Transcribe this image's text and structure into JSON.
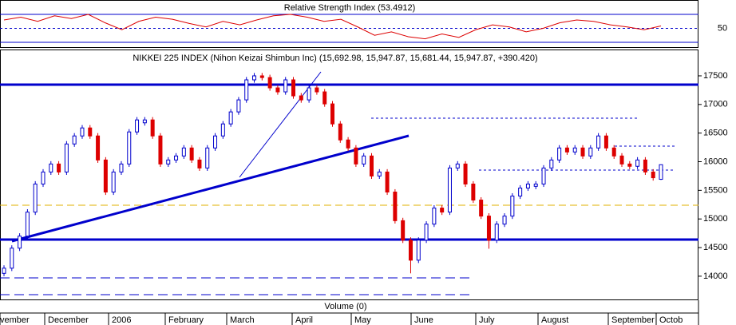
{
  "chart_data": {
    "type": "candlestick",
    "title": "NIKKEI 225 INDEX (Nihon Keizai Shimbun Inc) (15,692.98, 15,947.87, 15,681.44, 15,947.87, +390.420)",
    "up_color": "#0000cc",
    "down_color": "#dd0000",
    "ylim": [
      13580,
      17960
    ],
    "yticks": [
      14000,
      14500,
      15000,
      15500,
      16000,
      16500,
      17000,
      17500
    ],
    "xlabels": [
      "vember",
      "December",
      "2006",
      "February",
      "March",
      "April",
      "May",
      "June",
      "July",
      "August",
      "September",
      "Octob"
    ],
    "volume_label": "Volume (0)",
    "ohlc": [
      [
        14050,
        14190,
        14000,
        14140
      ],
      [
        14140,
        14540,
        14090,
        14490
      ],
      [
        14490,
        14750,
        14440,
        14700
      ],
      [
        14700,
        15170,
        14650,
        15120
      ],
      [
        15120,
        15660,
        15070,
        15610
      ],
      [
        15610,
        15870,
        15560,
        15820
      ],
      [
        15820,
        16010,
        15770,
        15960
      ],
      [
        15960,
        16010,
        15770,
        15820
      ],
      [
        15820,
        16360,
        15770,
        16310
      ],
      [
        16310,
        16500,
        16260,
        16450
      ],
      [
        16450,
        16640,
        16400,
        16590
      ],
      [
        16590,
        16640,
        16400,
        16450
      ],
      [
        16450,
        16500,
        15980,
        16030
      ],
      [
        16030,
        16080,
        15420,
        15470
      ],
      [
        15470,
        15870,
        15420,
        15820
      ],
      [
        15820,
        16010,
        15770,
        15960
      ],
      [
        15960,
        16570,
        15910,
        16520
      ],
      [
        16520,
        16780,
        16470,
        16730
      ],
      [
        16680,
        16780,
        16630,
        16730
      ],
      [
        16730,
        16780,
        16400,
        16450
      ],
      [
        16450,
        16500,
        15910,
        15960
      ],
      [
        15960,
        16080,
        15910,
        16030
      ],
      [
        16030,
        16150,
        15980,
        16100
      ],
      [
        16100,
        16290,
        16050,
        16240
      ],
      [
        16240,
        16290,
        15980,
        16030
      ],
      [
        16030,
        16080,
        15840,
        15890
      ],
      [
        15890,
        16290,
        15840,
        16240
      ],
      [
        16240,
        16500,
        16190,
        16450
      ],
      [
        16450,
        16710,
        16400,
        16660
      ],
      [
        16660,
        16920,
        16610,
        16870
      ],
      [
        16870,
        17130,
        16820,
        17080
      ],
      [
        17080,
        17480,
        17030,
        17430
      ],
      [
        17430,
        17550,
        17380,
        17500
      ],
      [
        17500,
        17550,
        17420,
        17470
      ],
      [
        17470,
        17520,
        17240,
        17290
      ],
      [
        17290,
        17340,
        17170,
        17220
      ],
      [
        17220,
        17480,
        17170,
        17430
      ],
      [
        17430,
        17480,
        17100,
        17150
      ],
      [
        17150,
        17200,
        17030,
        17080
      ],
      [
        17080,
        17340,
        17030,
        17290
      ],
      [
        17290,
        17340,
        17170,
        17220
      ],
      [
        17220,
        17270,
        16960,
        17010
      ],
      [
        17010,
        17060,
        16610,
        16660
      ],
      [
        16660,
        16710,
        16330,
        16380
      ],
      [
        16380,
        16430,
        16190,
        16240
      ],
      [
        16240,
        16290,
        15910,
        15960
      ],
      [
        15960,
        16150,
        15910,
        16100
      ],
      [
        16100,
        16150,
        15700,
        15750
      ],
      [
        15750,
        15870,
        15700,
        15820
      ],
      [
        15820,
        15870,
        15420,
        15470
      ],
      [
        15470,
        15520,
        14920,
        14970
      ],
      [
        14970,
        15020,
        14580,
        14630
      ],
      [
        14630,
        14680,
        14050,
        14280
      ],
      [
        14280,
        14680,
        14230,
        14630
      ],
      [
        14630,
        14960,
        14580,
        14910
      ],
      [
        14910,
        15240,
        14860,
        15190
      ],
      [
        15190,
        15240,
        15070,
        15120
      ],
      [
        15120,
        15940,
        15070,
        15890
      ],
      [
        15890,
        16010,
        15840,
        15960
      ],
      [
        15960,
        16010,
        15560,
        15610
      ],
      [
        15610,
        15660,
        15280,
        15330
      ],
      [
        15330,
        15380,
        15000,
        15050
      ],
      [
        15050,
        15100,
        14480,
        14630
      ],
      [
        14630,
        14960,
        14580,
        14910
      ],
      [
        14910,
        15100,
        14860,
        15050
      ],
      [
        15050,
        15450,
        15000,
        15400
      ],
      [
        15400,
        15590,
        15350,
        15540
      ],
      [
        15540,
        15660,
        15490,
        15610
      ],
      [
        15570,
        15660,
        15520,
        15610
      ],
      [
        15610,
        15940,
        15560,
        15890
      ],
      [
        15890,
        16080,
        15840,
        16030
      ],
      [
        16030,
        16290,
        15980,
        16240
      ],
      [
        16240,
        16290,
        16120,
        16170
      ],
      [
        16170,
        16290,
        16120,
        16240
      ],
      [
        16240,
        16290,
        16050,
        16100
      ],
      [
        16100,
        16290,
        16050,
        16240
      ],
      [
        16240,
        16500,
        16190,
        16450
      ],
      [
        16450,
        16500,
        16190,
        16240
      ],
      [
        16240,
        16290,
        16050,
        16100
      ],
      [
        16100,
        16150,
        15910,
        15960
      ],
      [
        15960,
        16010,
        15870,
        15920
      ],
      [
        15920,
        16080,
        15870,
        16030
      ],
      [
        16030,
        16080,
        15770,
        15820
      ],
      [
        15820,
        15870,
        15670,
        15720
      ],
      [
        15692.98,
        15947.87,
        15681.44,
        15947.87
      ]
    ],
    "rsi": {
      "title": "Relative Strength Index (53.4912)",
      "color": "#dd0000",
      "ylim": [
        22,
        90.6
      ],
      "yticks": [
        50
      ],
      "values": [
        62,
        66,
        60,
        68,
        64,
        70,
        58,
        48,
        60,
        66,
        63,
        57,
        52,
        60,
        55,
        62,
        68,
        70,
        66,
        60,
        63,
        52,
        40,
        45,
        38,
        35,
        42,
        37,
        48,
        55,
        52,
        45,
        50,
        58,
        62,
        60,
        55,
        52,
        48,
        53.4912
      ]
    }
  }
}
